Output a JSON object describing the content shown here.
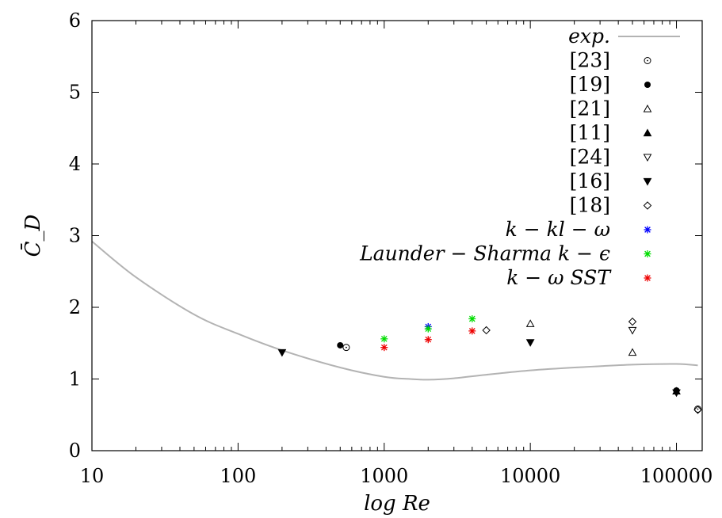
{
  "chart_data": {
    "type": "scatter",
    "xlabel": "log Re",
    "ylabel": "C̄_D",
    "xscale": "log",
    "xlim": [
      10,
      150000
    ],
    "ylim": [
      0,
      6
    ],
    "xticks": [
      {
        "value": 10,
        "label": "10"
      },
      {
        "value": 100,
        "label": "100"
      },
      {
        "value": 1000,
        "label": "1000"
      },
      {
        "value": 10000,
        "label": "10000"
      },
      {
        "value": 100000,
        "label": "100000"
      }
    ],
    "yticks": [
      {
        "value": 0,
        "label": "0"
      },
      {
        "value": 1,
        "label": "1"
      },
      {
        "value": 2,
        "label": "2"
      },
      {
        "value": 3,
        "label": "3"
      },
      {
        "value": 4,
        "label": "4"
      },
      {
        "value": 5,
        "label": "5"
      },
      {
        "value": 6,
        "label": "6"
      }
    ],
    "grid": false,
    "legend_position": "top-right",
    "series": [
      {
        "name": "exp.",
        "marker": "line",
        "color": "#b3b3b3",
        "x": [
          10,
          20,
          50,
          100,
          200,
          500,
          1000,
          1500,
          2000,
          3000,
          5000,
          10000,
          20000,
          50000,
          100000,
          140000
        ],
        "y": [
          2.92,
          2.42,
          1.9,
          1.63,
          1.4,
          1.16,
          1.03,
          1.0,
          0.99,
          1.01,
          1.06,
          1.12,
          1.16,
          1.2,
          1.21,
          1.19
        ]
      },
      {
        "name": "[23]",
        "marker": "circle-dot",
        "color": "#000000",
        "x": [
          550,
          140000
        ],
        "y": [
          1.44,
          0.58
        ]
      },
      {
        "name": "[19]",
        "marker": "circle-filled",
        "color": "#000000",
        "x": [
          500,
          100000
        ],
        "y": [
          1.47,
          0.84
        ]
      },
      {
        "name": "[21]",
        "marker": "triangle-up-open",
        "color": "#000000",
        "x": [
          10000,
          50000
        ],
        "y": [
          1.77,
          1.37
        ]
      },
      {
        "name": "[11]",
        "marker": "triangle-up-filled",
        "color": "#000000",
        "x": [
          100000
        ],
        "y": [
          0.83
        ]
      },
      {
        "name": "[24]",
        "marker": "triangle-down-open",
        "color": "#000000",
        "x": [
          50000
        ],
        "y": [
          1.68
        ]
      },
      {
        "name": "[16]",
        "marker": "triangle-down-filled",
        "color": "#000000",
        "x": [
          200,
          10000,
          100000
        ],
        "y": [
          1.37,
          1.51,
          0.81
        ]
      },
      {
        "name": "[18]",
        "marker": "diamond-open",
        "color": "#000000",
        "x": [
          5000,
          50000,
          140000
        ],
        "y": [
          1.68,
          1.8,
          0.57
        ]
      },
      {
        "name": "k − kl − ω",
        "marker": "star",
        "color": "#0000ff",
        "x": [
          2000
        ],
        "y": [
          1.73
        ]
      },
      {
        "name": "Launder − Sharma k − ϵ",
        "marker": "star",
        "color": "#00dd00",
        "x": [
          1000,
          2000,
          4000
        ],
        "y": [
          1.56,
          1.7,
          1.84
        ]
      },
      {
        "name": "k − ω SST",
        "marker": "star",
        "color": "#ee0000",
        "x": [
          1000,
          2000,
          4000
        ],
        "y": [
          1.44,
          1.55,
          1.67
        ]
      }
    ]
  }
}
